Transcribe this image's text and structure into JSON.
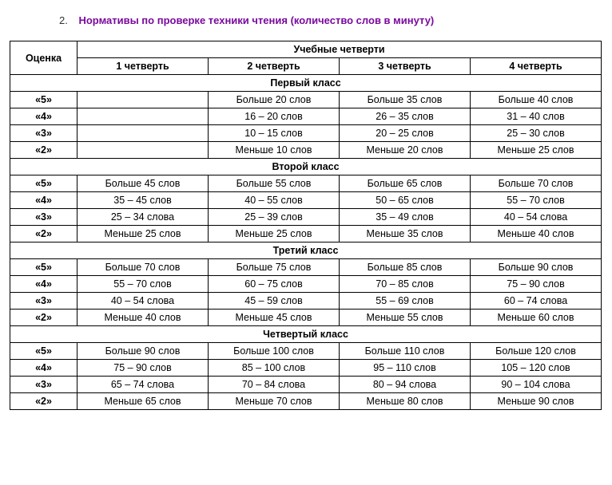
{
  "title_number": "2.",
  "title_text": "Нормативы по проверке техники чтения (количество слов в минуту)",
  "header": {
    "grade_col": "Оценка",
    "group": "Учебные четверти",
    "q1": "1 четверть",
    "q2": "2 четверть",
    "q3": "3 четверть",
    "q4": "4 четверть"
  },
  "sections": [
    {
      "name": "Первый класс",
      "rows": [
        {
          "grade": "«5»",
          "q1": "",
          "q2": "Больше 20 слов",
          "q3": "Больше 35 слов",
          "q4": "Больше 40 слов"
        },
        {
          "grade": "«4»",
          "q1": "",
          "q2": "16 – 20 слов",
          "q3": "26 – 35 слов",
          "q4": "31 – 40 слов"
        },
        {
          "grade": "«3»",
          "q1": "",
          "q2": "10 – 15 слов",
          "q3": "20 – 25 слов",
          "q4": "25 – 30 слов"
        },
        {
          "grade": "«2»",
          "q1": "",
          "q2": "Меньше 10 слов",
          "q3": "Меньше 20 слов",
          "q4": "Меньше 25 слов"
        }
      ]
    },
    {
      "name": "Второй класс",
      "rows": [
        {
          "grade": "«5»",
          "q1": "Больше 45 слов",
          "q2": "Больше 55 слов",
          "q3": "Больше 65 слов",
          "q4": "Больше 70 слов"
        },
        {
          "grade": "«4»",
          "q1": "35 – 45 слов",
          "q2": "40 – 55 слов",
          "q3": "50 – 65 слов",
          "q4": "55 – 70 слов"
        },
        {
          "grade": "«3»",
          "q1": "25 – 34 слова",
          "q2": "25 – 39 слов",
          "q3": "35 – 49 слов",
          "q4": "40 – 54 слова"
        },
        {
          "grade": "«2»",
          "q1": "Меньше 25 слов",
          "q2": "Меньше 25 слов",
          "q3": "Меньше 35 слов",
          "q4": "Меньше 40 слов"
        }
      ]
    },
    {
      "name": "Третий класс",
      "rows": [
        {
          "grade": "«5»",
          "q1": "Больше 70 слов",
          "q2": "Больше 75 слов",
          "q3": "Больше 85 слов",
          "q4": "Больше 90 слов"
        },
        {
          "grade": "«4»",
          "q1": "55 – 70 слов",
          "q2": "60 – 75 слов",
          "q3": "70 – 85 слов",
          "q4": "75 – 90 слов"
        },
        {
          "grade": "«3»",
          "q1": "40 – 54 слова",
          "q2": "45 – 59 слов",
          "q3": "55 – 69 слов",
          "q4": "60 – 74 слова"
        },
        {
          "grade": "«2»",
          "q1": "Меньше 40 слов",
          "q2": "Меньше 45 слов",
          "q3": "Меньше 55 слов",
          "q4": "Меньше 60 слов"
        }
      ]
    },
    {
      "name": "Четвертый класс",
      "rows": [
        {
          "grade": "«5»",
          "q1": "Больше 90 слов",
          "q2": "Больше 100 слов",
          "q3": "Больше 110 слов",
          "q4": "Больше 120 слов"
        },
        {
          "grade": "«4»",
          "q1": "75 – 90 слов",
          "q2": "85 – 100 слов",
          "q3": "95 – 110 слов",
          "q4": "105 – 120 слов"
        },
        {
          "grade": "«3»",
          "q1": "65 – 74 слова",
          "q2": "70 – 84 слова",
          "q3": "80 – 94 слова",
          "q4": "90 – 104 слова"
        },
        {
          "grade": "«2»",
          "q1": "Меньше 65 слов",
          "q2": "Меньше 70  слов",
          "q3": "Меньше 80  слов",
          "q4": "Меньше 90  слов"
        }
      ]
    }
  ]
}
